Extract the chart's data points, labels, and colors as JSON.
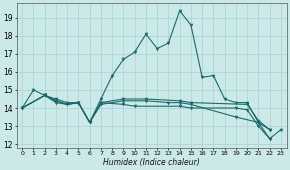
{
  "xlabel": "Humidex (Indice chaleur)",
  "xlim": [
    -0.5,
    23.5
  ],
  "ylim": [
    11.8,
    19.8
  ],
  "yticks": [
    12,
    13,
    14,
    15,
    16,
    17,
    18,
    19
  ],
  "xticks": [
    0,
    1,
    2,
    3,
    4,
    5,
    6,
    7,
    8,
    9,
    10,
    11,
    12,
    13,
    14,
    15,
    16,
    17,
    18,
    19,
    20,
    21,
    22,
    23
  ],
  "background_color": "#cce9e9",
  "grid_color": "#b0d5d5",
  "line_color": "#1a6b6b",
  "lines": [
    {
      "x": [
        0,
        1,
        2,
        3,
        4,
        5,
        6,
        7,
        8,
        9,
        10,
        11,
        12,
        13,
        14,
        15,
        16,
        17,
        18,
        19,
        20,
        21,
        22,
        23
      ],
      "y": [
        14.0,
        15.0,
        14.7,
        14.3,
        14.2,
        14.3,
        13.2,
        14.5,
        15.8,
        16.7,
        17.1,
        18.1,
        17.3,
        17.6,
        19.4,
        18.6,
        15.7,
        15.8,
        14.5,
        14.3,
        14.3,
        13.2,
        12.3,
        12.8
      ]
    },
    {
      "x": [
        0,
        2,
        3,
        4,
        5,
        6,
        7,
        9,
        11,
        14,
        15,
        20,
        21,
        22
      ],
      "y": [
        14.0,
        14.7,
        14.4,
        14.2,
        14.3,
        13.2,
        14.3,
        14.5,
        14.5,
        14.4,
        14.3,
        14.2,
        13.3,
        12.8
      ]
    },
    {
      "x": [
        0,
        2,
        3,
        4,
        5,
        6,
        7,
        9,
        11,
        13,
        14,
        15,
        19,
        21,
        22
      ],
      "y": [
        14.0,
        14.7,
        14.5,
        14.3,
        14.3,
        13.2,
        14.2,
        14.4,
        14.4,
        14.3,
        14.3,
        14.2,
        13.5,
        13.2,
        12.8
      ]
    },
    {
      "x": [
        0,
        2,
        3,
        4,
        5,
        6,
        7,
        9,
        10,
        14,
        15,
        19,
        20,
        21,
        22
      ],
      "y": [
        14.0,
        14.7,
        14.4,
        14.2,
        14.3,
        13.2,
        14.3,
        14.2,
        14.1,
        14.1,
        14.0,
        14.0,
        13.9,
        13.0,
        12.3
      ]
    }
  ]
}
